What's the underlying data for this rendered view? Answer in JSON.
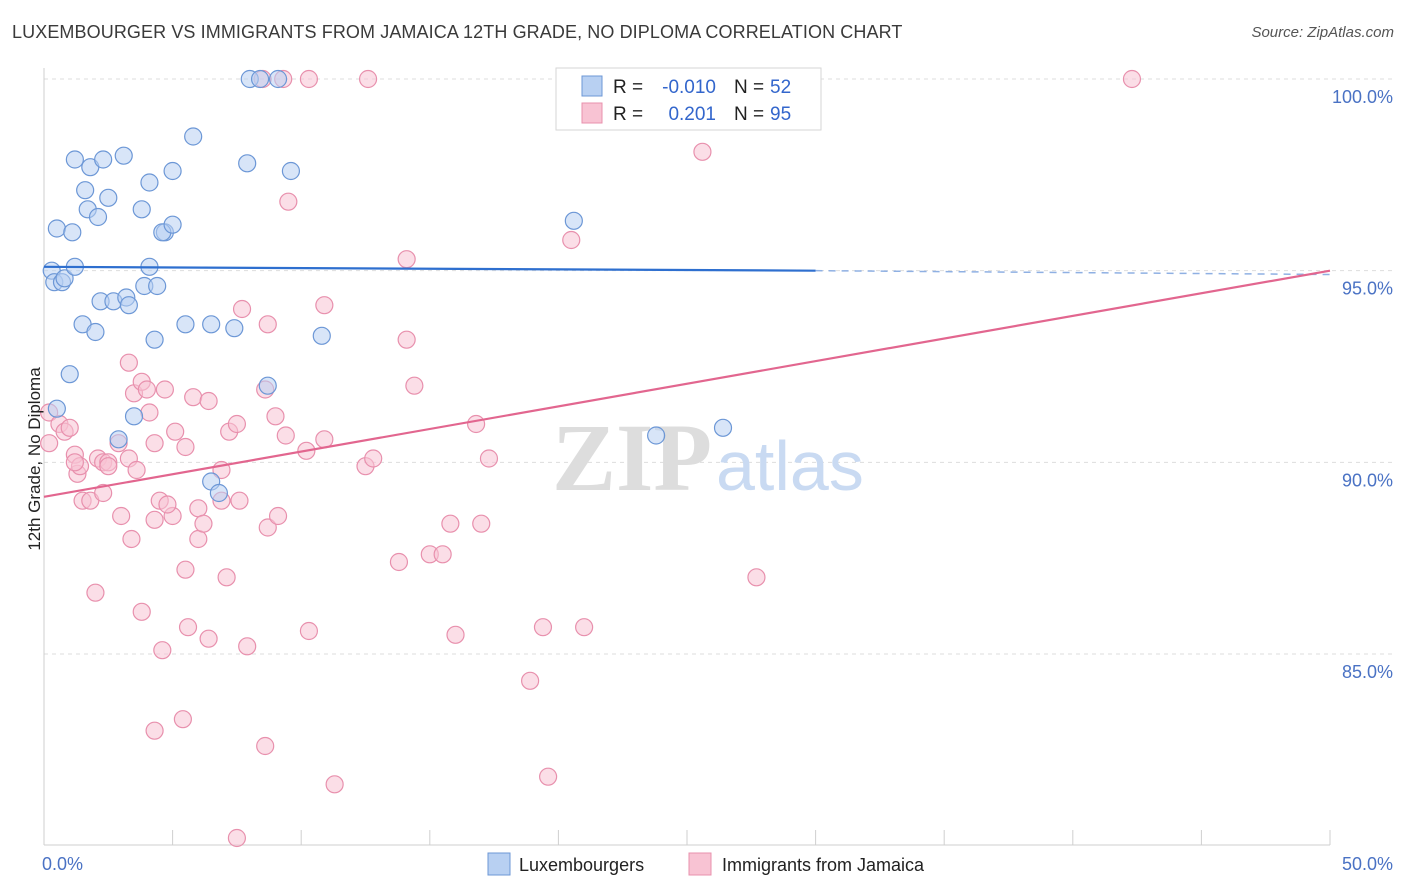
{
  "title": "LUXEMBOURGER VS IMMIGRANTS FROM JAMAICA 12TH GRADE, NO DIPLOMA CORRELATION CHART",
  "source": "Source: ZipAtlas.com",
  "watermark": {
    "zip": "ZIP",
    "atlas": "atlas"
  },
  "colors": {
    "blue_fill": "#b8d0f2",
    "blue_stroke": "#6c97d6",
    "blue_line": "#2e6fcf",
    "pink_fill": "#f8c3d3",
    "pink_stroke": "#e890ad",
    "pink_line": "#e2668f",
    "grid": "#dddddd",
    "axis_text": "#4a72c4"
  },
  "legend_box": {
    "rows": [
      {
        "r_label": "R =",
        "r_value": "-0.010",
        "n_label": "N =",
        "n_value": "52"
      },
      {
        "r_label": "R =",
        "r_value": "0.201",
        "n_label": "N =",
        "n_value": "95"
      }
    ]
  },
  "chart_data": {
    "type": "scatter",
    "title": "LUXEMBOURGER VS IMMIGRANTS FROM JAMAICA 12TH GRADE, NO DIPLOMA CORRELATION CHART",
    "xlabel": "",
    "ylabel": "12th Grade, No Diploma",
    "xlim": [
      0,
      50
    ],
    "ylim": [
      80.0,
      100.5
    ],
    "x_tick_labels": [
      "0.0%",
      "50.0%"
    ],
    "y_ticks": [
      85,
      90,
      95,
      100
    ],
    "y_tick_labels": [
      "85.0%",
      "90.0%",
      "95.0%",
      "100.0%"
    ],
    "grid": true,
    "legend_position": "bottom",
    "series": [
      {
        "name": "Luxembourgers",
        "color": "#6c97d6",
        "trend": {
          "x": [
            0,
            30
          ],
          "y": [
            95.1,
            95.0
          ],
          "dashed_to_x": 50,
          "dashed_to_y": 94.9
        },
        "points": [
          [
            0.3,
            95.0
          ],
          [
            0.4,
            94.7
          ],
          [
            0.7,
            94.7
          ],
          [
            0.8,
            94.8
          ],
          [
            1.2,
            95.1
          ],
          [
            0.5,
            96.1
          ],
          [
            1.1,
            96.0
          ],
          [
            1.2,
            97.9
          ],
          [
            1.6,
            97.1
          ],
          [
            1.7,
            96.6
          ],
          [
            1.8,
            97.7
          ],
          [
            2.1,
            96.4
          ],
          [
            2.3,
            97.9
          ],
          [
            2.5,
            96.9
          ],
          [
            3.1,
            98.0
          ],
          [
            3.8,
            96.6
          ],
          [
            4.1,
            97.3
          ],
          [
            4.7,
            96.0
          ],
          [
            4.6,
            96.0
          ],
          [
            5.0,
            97.6
          ],
          [
            5.0,
            96.2
          ],
          [
            5.8,
            98.5
          ],
          [
            7.9,
            97.8
          ],
          [
            9.6,
            97.6
          ],
          [
            8.0,
            100.0
          ],
          [
            8.4,
            100.0
          ],
          [
            9.1,
            100.0
          ],
          [
            2.2,
            94.2
          ],
          [
            2.7,
            94.2
          ],
          [
            3.2,
            94.3
          ],
          [
            3.3,
            94.1
          ],
          [
            3.9,
            94.6
          ],
          [
            4.4,
            94.6
          ],
          [
            4.1,
            95.1
          ],
          [
            1.5,
            93.6
          ],
          [
            2.0,
            93.4
          ],
          [
            4.3,
            93.2
          ],
          [
            5.5,
            93.6
          ],
          [
            6.5,
            93.6
          ],
          [
            7.4,
            93.5
          ],
          [
            10.8,
            93.3
          ],
          [
            1.0,
            92.3
          ],
          [
            3.5,
            91.2
          ],
          [
            0.5,
            91.4
          ],
          [
            2.9,
            90.6
          ],
          [
            8.7,
            92.0
          ],
          [
            6.5,
            89.5
          ],
          [
            6.8,
            89.2
          ],
          [
            20.6,
            96.3
          ],
          [
            23.8,
            90.7
          ],
          [
            26.4,
            90.9
          ],
          [
            27.4,
            100.0
          ]
        ]
      },
      {
        "name": "Immigrants from Jamaica",
        "color": "#e890ad",
        "trend": {
          "x": [
            0,
            50
          ],
          "y": [
            89.1,
            95.0
          ]
        },
        "points": [
          [
            0.2,
            91.3
          ],
          [
            0.2,
            90.5
          ],
          [
            0.6,
            91.0
          ],
          [
            0.8,
            90.8
          ],
          [
            1.0,
            90.9
          ],
          [
            1.2,
            90.2
          ],
          [
            1.3,
            89.7
          ],
          [
            1.4,
            89.9
          ],
          [
            1.5,
            89.0
          ],
          [
            1.8,
            89.0
          ],
          [
            2.1,
            90.1
          ],
          [
            2.3,
            90.0
          ],
          [
            2.5,
            90.0
          ],
          [
            2.5,
            89.9
          ],
          [
            2.9,
            90.5
          ],
          [
            3.3,
            90.1
          ],
          [
            3.5,
            91.8
          ],
          [
            3.8,
            92.1
          ],
          [
            3.3,
            92.6
          ],
          [
            4.0,
            91.9
          ],
          [
            4.1,
            91.3
          ],
          [
            4.3,
            90.5
          ],
          [
            4.7,
            91.9
          ],
          [
            5.1,
            90.8
          ],
          [
            5.5,
            90.4
          ],
          [
            5.8,
            91.7
          ],
          [
            6.4,
            91.6
          ],
          [
            6.9,
            89.8
          ],
          [
            7.2,
            90.8
          ],
          [
            7.5,
            91.0
          ],
          [
            7.7,
            94.0
          ],
          [
            8.6,
            91.9
          ],
          [
            8.7,
            93.6
          ],
          [
            9.0,
            91.2
          ],
          [
            9.4,
            90.7
          ],
          [
            10.2,
            90.3
          ],
          [
            10.9,
            90.6
          ],
          [
            10.9,
            94.1
          ],
          [
            12.5,
            89.9
          ],
          [
            12.8,
            90.1
          ],
          [
            14.1,
            93.2
          ],
          [
            14.4,
            92.0
          ],
          [
            16.8,
            91.0
          ],
          [
            17.3,
            90.1
          ],
          [
            3.0,
            88.6
          ],
          [
            3.4,
            88.0
          ],
          [
            3.6,
            89.8
          ],
          [
            4.3,
            88.5
          ],
          [
            4.5,
            89.0
          ],
          [
            5.0,
            88.6
          ],
          [
            6.0,
            88.8
          ],
          [
            6.0,
            88.0
          ],
          [
            6.9,
            89.0
          ],
          [
            7.1,
            87.0
          ],
          [
            7.6,
            89.0
          ],
          [
            8.7,
            88.3
          ],
          [
            5.5,
            87.2
          ],
          [
            2.0,
            86.6
          ],
          [
            3.8,
            86.1
          ],
          [
            5.6,
            85.7
          ],
          [
            6.4,
            85.4
          ],
          [
            7.9,
            85.2
          ],
          [
            10.3,
            85.6
          ],
          [
            4.6,
            85.1
          ],
          [
            13.8,
            87.4
          ],
          [
            15.0,
            87.6
          ],
          [
            15.5,
            87.6
          ],
          [
            15.8,
            88.4
          ],
          [
            17.0,
            88.4
          ],
          [
            16.0,
            85.5
          ],
          [
            18.9,
            84.3
          ],
          [
            19.4,
            85.7
          ],
          [
            27.7,
            87.0
          ],
          [
            5.4,
            83.3
          ],
          [
            4.3,
            83.0
          ],
          [
            8.6,
            82.6
          ],
          [
            11.3,
            81.6
          ],
          [
            19.6,
            81.8
          ],
          [
            7.5,
            80.2
          ],
          [
            21.0,
            85.7
          ],
          [
            9.5,
            96.8
          ],
          [
            14.1,
            95.3
          ],
          [
            20.5,
            95.8
          ],
          [
            25.6,
            98.1
          ],
          [
            8.5,
            100.0
          ],
          [
            9.3,
            100.0
          ],
          [
            10.3,
            100.0
          ],
          [
            12.6,
            100.0
          ],
          [
            42.3,
            100.0
          ],
          [
            21.0,
            100.0
          ],
          [
            2.3,
            89.2
          ],
          [
            1.2,
            90.0
          ],
          [
            4.8,
            88.9
          ],
          [
            6.2,
            88.4
          ],
          [
            9.1,
            88.6
          ]
        ]
      }
    ]
  }
}
